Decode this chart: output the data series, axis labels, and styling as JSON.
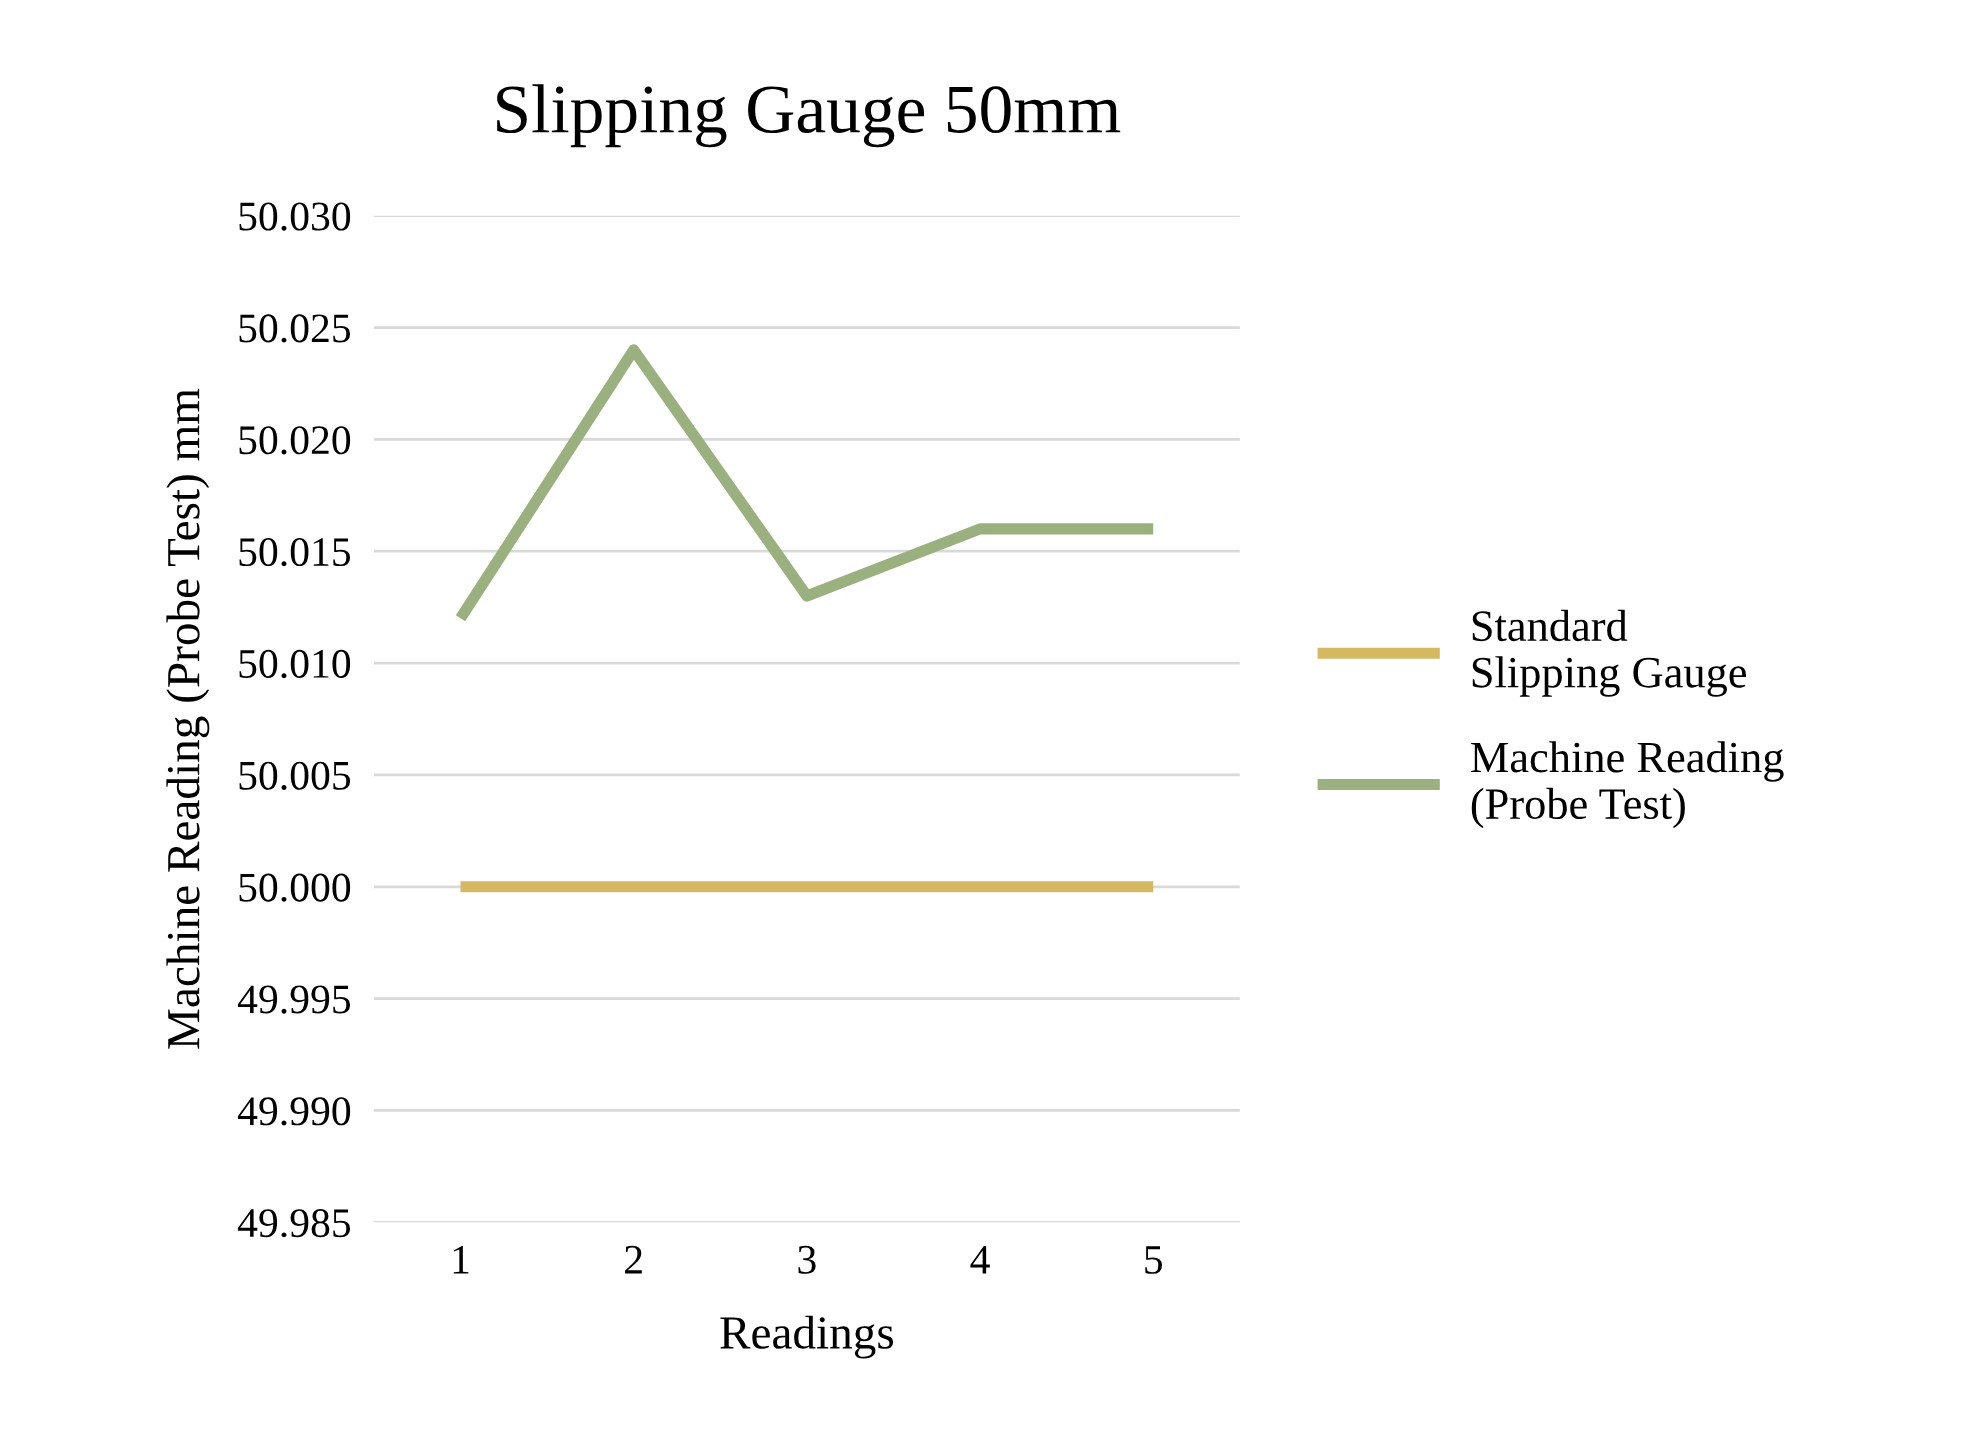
{
  "chart_data": {
    "type": "line",
    "title": "Slipping Gauge 50mm",
    "xlabel": "Readings",
    "ylabel": "Machine Reading (Probe Test) mm",
    "categories": [
      "1",
      "2",
      "3",
      "4",
      "5"
    ],
    "series": [
      {
        "name": "Standard Slipping Gauge",
        "color": "#d4b962",
        "values": [
          50.0,
          50.0,
          50.0,
          50.0,
          50.0
        ]
      },
      {
        "name": "Machine Reading (Probe Test)",
        "color": "#9bb07f",
        "values": [
          50.012,
          50.024,
          50.013,
          50.016,
          50.016
        ]
      }
    ],
    "ylim": [
      49.985,
      50.03
    ],
    "yticks": [
      {
        "value": 49.985,
        "label": "49.985"
      },
      {
        "value": 49.99,
        "label": "49.990"
      },
      {
        "value": 49.995,
        "label": "49.995"
      },
      {
        "value": 50.0,
        "label": "50.000"
      },
      {
        "value": 50.005,
        "label": "50.005"
      },
      {
        "value": 50.01,
        "label": "50.010"
      },
      {
        "value": 50.015,
        "label": "50.015"
      },
      {
        "value": 50.02,
        "label": "50.020"
      },
      {
        "value": 50.025,
        "label": "50.025"
      },
      {
        "value": 50.03,
        "label": "50.030"
      }
    ],
    "grid": "y",
    "legend": "right",
    "marker": "none",
    "line_style": "solid"
  }
}
